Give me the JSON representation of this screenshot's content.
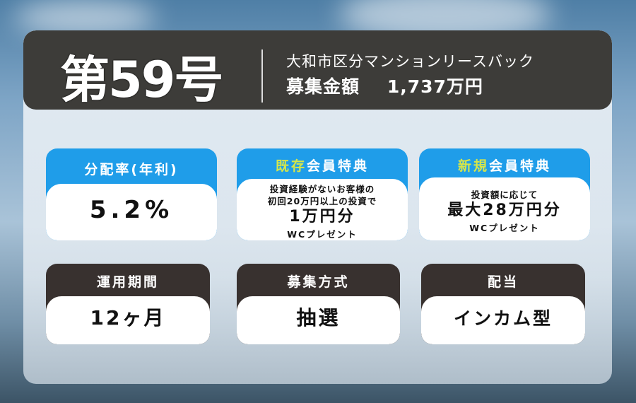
{
  "header": {
    "issue": "第59号",
    "property": "大和市区分マンションリースバック",
    "amount_label": "募集金額",
    "amount": "1,737万円"
  },
  "cards": [
    {
      "title": "分配率(年利)",
      "value": "5.2%"
    },
    {
      "title_accent": "既存",
      "title_rest": "会員特典",
      "line1": "投資経験がないお客様の",
      "line2": "初回20万円以上の投資で",
      "value": "1万円分",
      "note": "WCプレゼント"
    },
    {
      "title_accent": "新規",
      "title_rest": "会員特典",
      "line1": "投資額に応じて",
      "value": "最大28万円分",
      "note": "WCプレゼント"
    },
    {
      "title": "運用期間",
      "value": "12ヶ月"
    },
    {
      "title": "募集方式",
      "value": "抽選"
    },
    {
      "title": "配当",
      "value": "インカム型"
    }
  ],
  "colors": {
    "blue": "#1f9de9",
    "dark": "#38312f",
    "header": "#3d3c39",
    "accent": "#d6e64a"
  }
}
